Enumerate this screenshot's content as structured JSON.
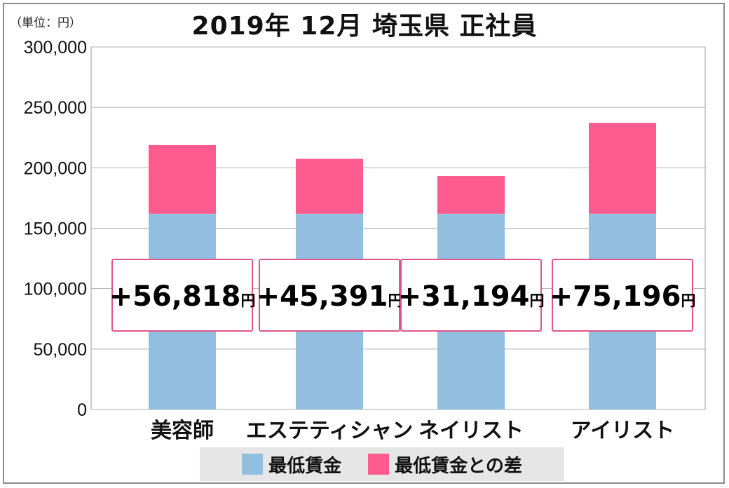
{
  "unit_label": "（単位：円）",
  "title": "2019年 12月  埼玉県  正社員",
  "legend": [
    {
      "label": "最低賃金",
      "color": "#92bfe0"
    },
    {
      "label": "最低賃金との差",
      "color": "#fd5b8f"
    }
  ],
  "chart_data": {
    "type": "bar",
    "stacked": true,
    "categories": [
      "美容師",
      "エステティシャン",
      "ネイリスト",
      "アイリスト"
    ],
    "series": [
      {
        "name": "最低賃金",
        "color": "#92bfe0",
        "values": [
          162000,
          162000,
          162000,
          162000
        ]
      },
      {
        "name": "最低賃金との差",
        "color": "#fd5b8f",
        "values": [
          56818,
          45391,
          31194,
          75196
        ]
      }
    ],
    "data_labels": [
      "+56,818",
      "+45,391",
      "+31,194",
      "+75,196"
    ],
    "data_label_unit": "円",
    "ylim": [
      0,
      300000
    ],
    "yticks": [
      0,
      50000,
      100000,
      150000,
      200000,
      250000,
      300000
    ],
    "ytick_labels": [
      "0",
      "50,000",
      "100,000",
      "150,000",
      "200,000",
      "250,000",
      "300,000"
    ],
    "grid": true,
    "legend_position": "bottom"
  }
}
